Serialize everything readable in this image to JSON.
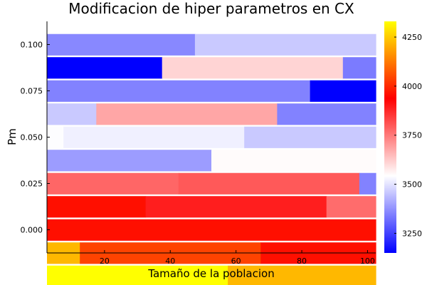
{
  "chart_data": {
    "type": "heatmap",
    "title": "Modificacion de hiper parametros en CX",
    "xlabel": "Tamaño de la poblacion",
    "ylabel": "Pm",
    "xlim": [
      2.5,
      102.5
    ],
    "ylim": [
      -0.0125,
      0.1125
    ],
    "x_ticks": [
      20,
      40,
      60,
      80,
      100
    ],
    "x_tick_labels": [
      "20",
      "40",
      "60",
      "80",
      "100"
    ],
    "y_ticks": [
      0.0,
      0.025,
      0.05,
      0.075,
      0.1
    ],
    "y_tick_labels": [
      "0.000",
      "0.025",
      "0.050",
      "0.075",
      "0.100"
    ],
    "colorbar": {
      "min": 3150,
      "max": 4330,
      "ticks": [
        3250,
        3500,
        3750,
        4000,
        4250
      ],
      "tick_labels": [
        "3250",
        "3500",
        "3750",
        "4000",
        "4250"
      ],
      "colors": [
        "#0000ff",
        "#ffffff",
        "#ff0000",
        "#ffff00"
      ]
    },
    "rows": [
      {
        "pm": 0.1,
        "segments": [
          {
            "from": 2.5,
            "to": 47.5,
            "value": 3360
          },
          {
            "from": 47.5,
            "to": 102.5,
            "value": 3460
          }
        ]
      },
      {
        "pm": 0.0875,
        "segments": [
          {
            "from": 2.5,
            "to": 37.5,
            "value": 3150
          },
          {
            "from": 37.5,
            "to": 92.5,
            "value": 3610
          },
          {
            "from": 92.5,
            "to": 102.5,
            "value": 3340
          }
        ]
      },
      {
        "pm": 0.075,
        "segments": [
          {
            "from": 2.5,
            "to": 82.5,
            "value": 3350
          },
          {
            "from": 82.5,
            "to": 102.5,
            "value": 3150
          }
        ]
      },
      {
        "pm": 0.0625,
        "segments": [
          {
            "from": 2.5,
            "to": 17.5,
            "value": 3460
          },
          {
            "from": 17.5,
            "to": 72.5,
            "value": 3680
          },
          {
            "from": 72.5,
            "to": 102.5,
            "value": 3350
          }
        ]
      },
      {
        "pm": 0.05,
        "segments": [
          {
            "from": 2.5,
            "to": 7.5,
            "value": 3540
          },
          {
            "from": 7.5,
            "to": 62.5,
            "value": 3520
          },
          {
            "from": 62.5,
            "to": 102.5,
            "value": 3460
          }
        ]
      },
      {
        "pm": 0.0375,
        "segments": [
          {
            "from": 2.5,
            "to": 52.5,
            "value": 3390
          },
          {
            "from": 52.5,
            "to": 102.5,
            "value": 3550
          }
        ]
      },
      {
        "pm": 0.025,
        "segments": [
          {
            "from": 2.5,
            "to": 42.5,
            "value": 3780
          },
          {
            "from": 42.5,
            "to": 97.5,
            "value": 3800
          },
          {
            "from": 97.5,
            "to": 102.5,
            "value": 3350
          }
        ]
      },
      {
        "pm": 0.0125,
        "segments": [
          {
            "from": 2.5,
            "to": 32.5,
            "value": 3960
          },
          {
            "from": 32.5,
            "to": 87.5,
            "value": 3890
          },
          {
            "from": 87.5,
            "to": 102.5,
            "value": 3770
          }
        ]
      },
      {
        "pm": 0.0,
        "segments": [
          {
            "from": 2.5,
            "to": 102.5,
            "value": 3960
          }
        ]
      },
      {
        "pm": -0.0125,
        "segments": [
          {
            "from": 2.5,
            "to": 12.5,
            "value": 4220
          },
          {
            "from": 12.5,
            "to": 67.5,
            "value": 4040
          },
          {
            "from": 67.5,
            "to": 102.5,
            "value": 3960
          }
        ]
      },
      {
        "pm": -0.025,
        "segments": [
          {
            "from": 2.5,
            "to": 57.5,
            "value": 4330
          },
          {
            "from": 57.5,
            "to": 102.5,
            "value": 4220
          }
        ]
      }
    ]
  }
}
